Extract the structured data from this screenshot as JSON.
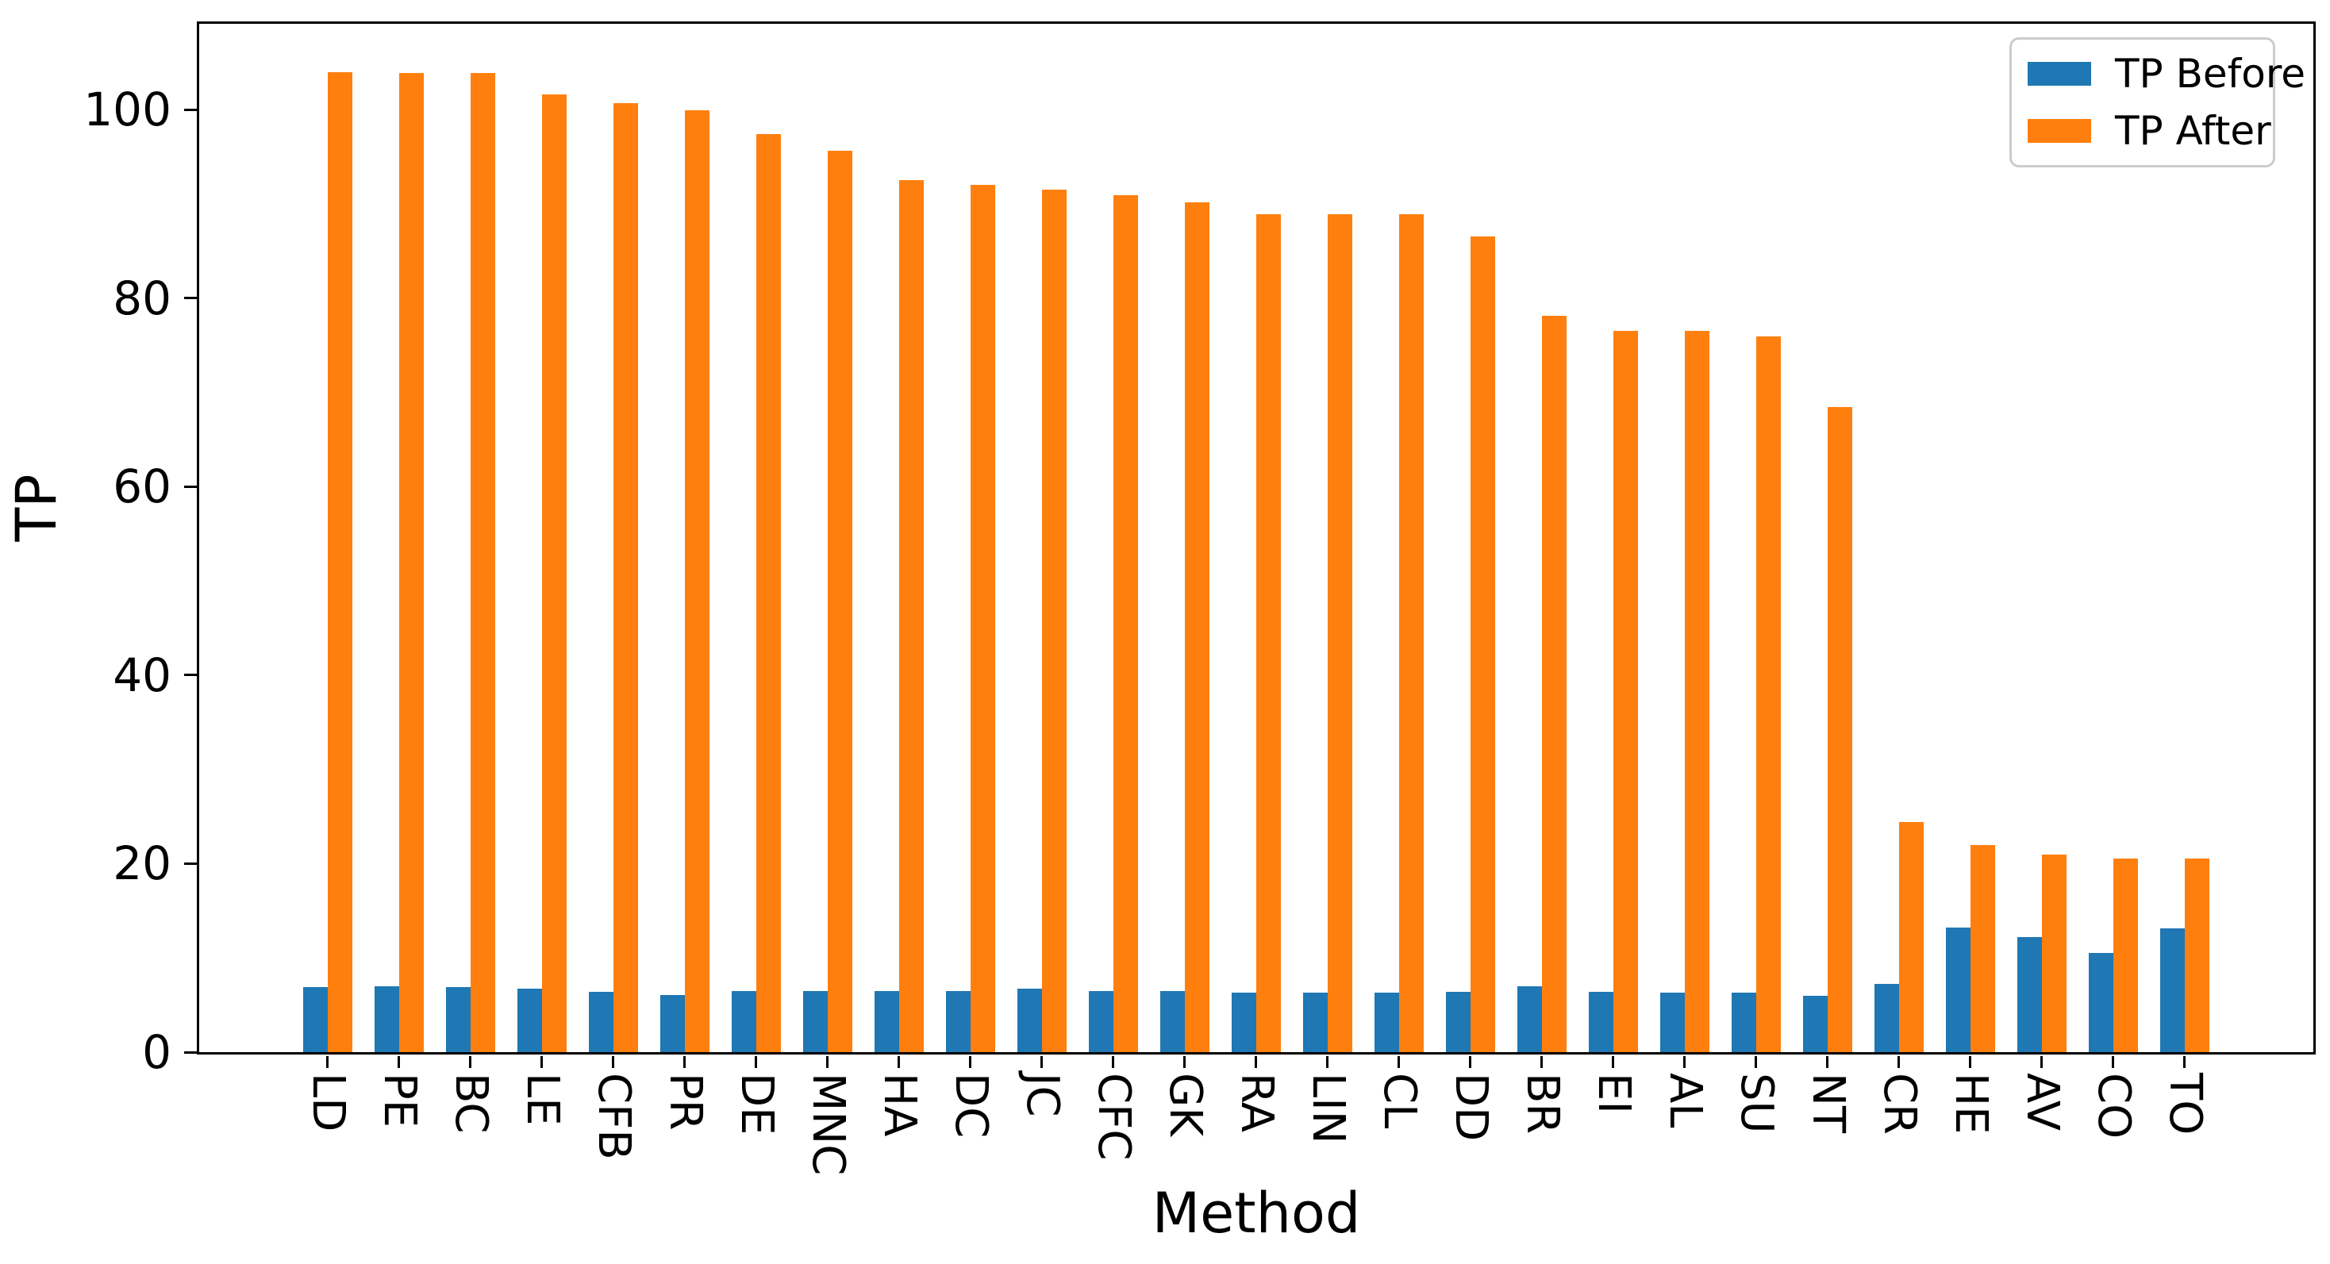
{
  "chart_data": {
    "type": "bar",
    "title": "",
    "xlabel": "Method",
    "ylabel": "TP",
    "categories": [
      "LD",
      "PE",
      "BC",
      "LE",
      "CFB",
      "PR",
      "DE",
      "MNC",
      "HA",
      "DC",
      "JC",
      "CFC",
      "GK",
      "RA",
      "LIN",
      "CL",
      "DD",
      "BR",
      "EI",
      "AL",
      "SU",
      "NT",
      "CR",
      "HE",
      "AV",
      "CO",
      "TO"
    ],
    "series": [
      {
        "name": "TP Before",
        "color": "#1f77b4",
        "values": [
          6.9,
          7.0,
          6.9,
          6.7,
          6.4,
          6.1,
          6.5,
          6.5,
          6.5,
          6.5,
          6.7,
          6.5,
          6.5,
          6.3,
          6.3,
          6.3,
          6.4,
          7.0,
          6.4,
          6.3,
          6.3,
          6.0,
          7.2,
          13.2,
          12.2,
          10.5,
          13.1
        ]
      },
      {
        "name": "TP After",
        "color": "#ff7f0e",
        "values": [
          104.0,
          103.9,
          103.9,
          101.6,
          100.7,
          99.9,
          97.4,
          95.6,
          92.5,
          92.0,
          91.5,
          90.9,
          90.2,
          88.9,
          88.9,
          88.9,
          86.5,
          78.1,
          76.5,
          76.5,
          75.9,
          68.4,
          24.4,
          22.0,
          21.0,
          20.5,
          20.5
        ]
      }
    ],
    "ylim": [
      0,
      109.1
    ],
    "y_ticks": [
      0,
      20,
      40,
      60,
      80,
      100
    ],
    "legend_position": "upper right",
    "grid": false
  }
}
